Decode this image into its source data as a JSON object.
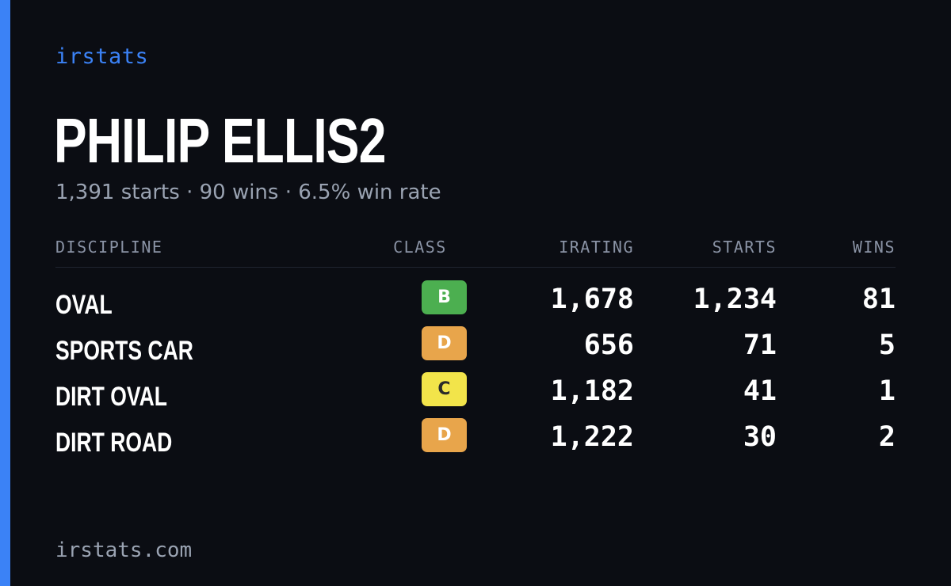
{
  "brand": "irstats",
  "player": {
    "name": "PHILIP ELLIS2",
    "summary": "1,391 starts · 90 wins · 6.5% win rate"
  },
  "table": {
    "headers": {
      "discipline": "DISCIPLINE",
      "class": "CLASS",
      "irating": "IRATING",
      "starts": "STARTS",
      "wins": "WINS"
    },
    "rows": [
      {
        "discipline": "OVAL",
        "class": "B",
        "class_color": "#4caf50",
        "class_text_color": "#ffffff",
        "irating": "1,678",
        "starts": "1,234",
        "wins": "81"
      },
      {
        "discipline": "SPORTS CAR",
        "class": "D",
        "class_color": "#e8a54b",
        "class_text_color": "#ffffff",
        "irating": "656",
        "starts": "71",
        "wins": "5"
      },
      {
        "discipline": "DIRT OVAL",
        "class": "C",
        "class_color": "#f2e44a",
        "class_text_color": "#2a2a2a",
        "irating": "1,182",
        "starts": "41",
        "wins": "1"
      },
      {
        "discipline": "DIRT ROAD",
        "class": "D",
        "class_color": "#e8a54b",
        "class_text_color": "#ffffff",
        "irating": "1,222",
        "starts": "30",
        "wins": "2"
      }
    ]
  },
  "footer": "irstats.com",
  "colors": {
    "accent": "#3b82f6",
    "background": "#0b0d13"
  }
}
